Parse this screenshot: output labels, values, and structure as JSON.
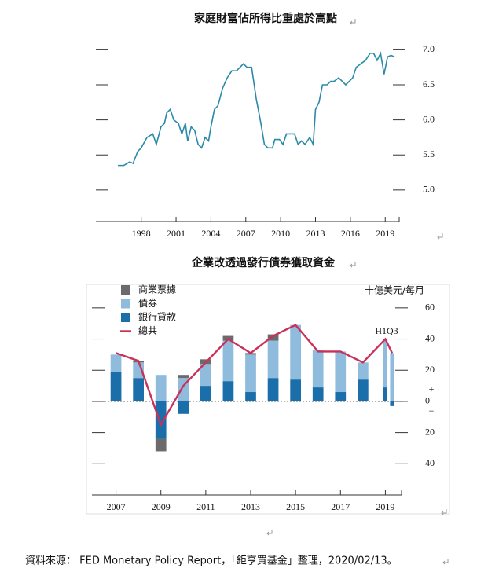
{
  "chart_data": [
    {
      "type": "line",
      "title": "家庭財富佔所得比重處於高點",
      "x": [
        1996.0,
        1996.5,
        1997.0,
        1997.3,
        1997.7,
        1998.0,
        1998.5,
        1999.0,
        1999.3,
        1999.7,
        2000.0,
        2000.2,
        2000.5,
        2000.8,
        2001.2,
        2001.5,
        2001.8,
        2002.0,
        2002.3,
        2002.6,
        2002.9,
        2003.2,
        2003.5,
        2003.8,
        2004.0,
        2004.3,
        2004.6,
        2005.0,
        2005.4,
        2005.8,
        2006.2,
        2006.5,
        2006.8,
        2007.1,
        2007.5,
        2007.9,
        2008.3,
        2008.6,
        2008.9,
        2009.3,
        2009.5,
        2009.9,
        2010.2,
        2010.5,
        2010.9,
        2011.2,
        2011.5,
        2011.8,
        2012.1,
        2012.5,
        2012.8,
        2013.0,
        2013.3,
        2013.6,
        2014.0,
        2014.3,
        2014.6,
        2015.0,
        2015.3,
        2015.6,
        2015.9,
        2016.2,
        2016.5,
        2016.9,
        2017.3,
        2017.7,
        2018.0,
        2018.3,
        2018.6,
        2018.9,
        2019.2,
        2019.5,
        2019.8
      ],
      "series": [
        {
          "color": "#2a8aa8",
          "values": [
            5.35,
            5.35,
            5.4,
            5.38,
            5.55,
            5.6,
            5.75,
            5.8,
            5.65,
            5.9,
            5.95,
            6.1,
            6.15,
            6.0,
            5.95,
            5.8,
            5.95,
            5.7,
            5.9,
            5.85,
            5.65,
            5.6,
            5.75,
            5.7,
            5.9,
            6.15,
            6.2,
            6.45,
            6.6,
            6.7,
            6.7,
            6.75,
            6.8,
            6.75,
            6.75,
            6.3,
            5.95,
            5.65,
            5.6,
            5.6,
            5.72,
            5.72,
            5.65,
            5.8,
            5.8,
            5.8,
            5.65,
            5.7,
            5.65,
            5.75,
            5.65,
            6.15,
            6.25,
            6.5,
            6.5,
            6.55,
            6.55,
            6.6,
            6.55,
            6.5,
            6.55,
            6.6,
            6.75,
            6.8,
            6.85,
            6.95,
            6.95,
            6.85,
            6.95,
            6.65,
            6.9,
            6.92,
            6.9
          ]
        }
      ],
      "xlim": [
        1994.1,
        2020.2
      ],
      "xticks": [
        1998,
        2001,
        2004,
        2007,
        2010,
        2013,
        2016,
        2019
      ],
      "ylim": [
        4.55,
        7.15
      ],
      "yticks": [
        {
          "value": 5,
          "label": "5.0"
        },
        5.5,
        {
          "value": 6,
          "label": "6.0"
        },
        6.5,
        {
          "value": 7,
          "label": "7.0"
        }
      ]
    },
    {
      "type": "bar",
      "title": "企業改透過發行債券獲取資金",
      "unit_label": "十億美元/每月",
      "annotations": [
        "H1Q3",
        "+",
        "−"
      ],
      "x": [
        2007,
        2008,
        2009,
        2010,
        2011,
        2012,
        2013,
        2014,
        2015,
        2016,
        2017,
        2018,
        2019,
        2019.3
      ],
      "series": [
        {
          "name": "銀行貸款",
          "color": "#1a6faa",
          "values": [
            19,
            15,
            -24,
            -8,
            10,
            13,
            6,
            15,
            14,
            9,
            6,
            14,
            9,
            -3
          ]
        },
        {
          "name": "債券",
          "color": "#8fbbdc",
          "values": [
            11,
            10,
            17,
            15,
            14,
            26,
            24,
            24,
            35,
            24,
            26,
            11,
            31,
            31
          ]
        },
        {
          "name": "商業票據",
          "color": "#6b6b6b",
          "values": [
            0,
            1,
            -8,
            2,
            3,
            3,
            1,
            4,
            0,
            0,
            0,
            0,
            0,
            0
          ]
        },
        {
          "name": "總共",
          "type": "line",
          "color": "#c8325a",
          "values": [
            31,
            26,
            -15,
            10,
            25,
            40,
            31,
            42,
            49,
            32,
            32,
            25,
            40,
            31
          ]
        }
      ],
      "legend_order": [
        2,
        1,
        0,
        3
      ],
      "xlim": [
        2005.93,
        2019.72
      ],
      "xticks": [
        2007,
        2009,
        2011,
        2013,
        2015,
        2017,
        2019
      ],
      "ylim": [
        -60,
        70
      ],
      "yticks": [
        {
          "value": -40,
          "label": "40"
        },
        {
          "value": -20,
          "label": "20"
        },
        0,
        20,
        40,
        60
      ]
    }
  ],
  "source": "資料來源：  FED Monetary Policy Report，「鉅亨買基金」整理，2020/02/13。"
}
